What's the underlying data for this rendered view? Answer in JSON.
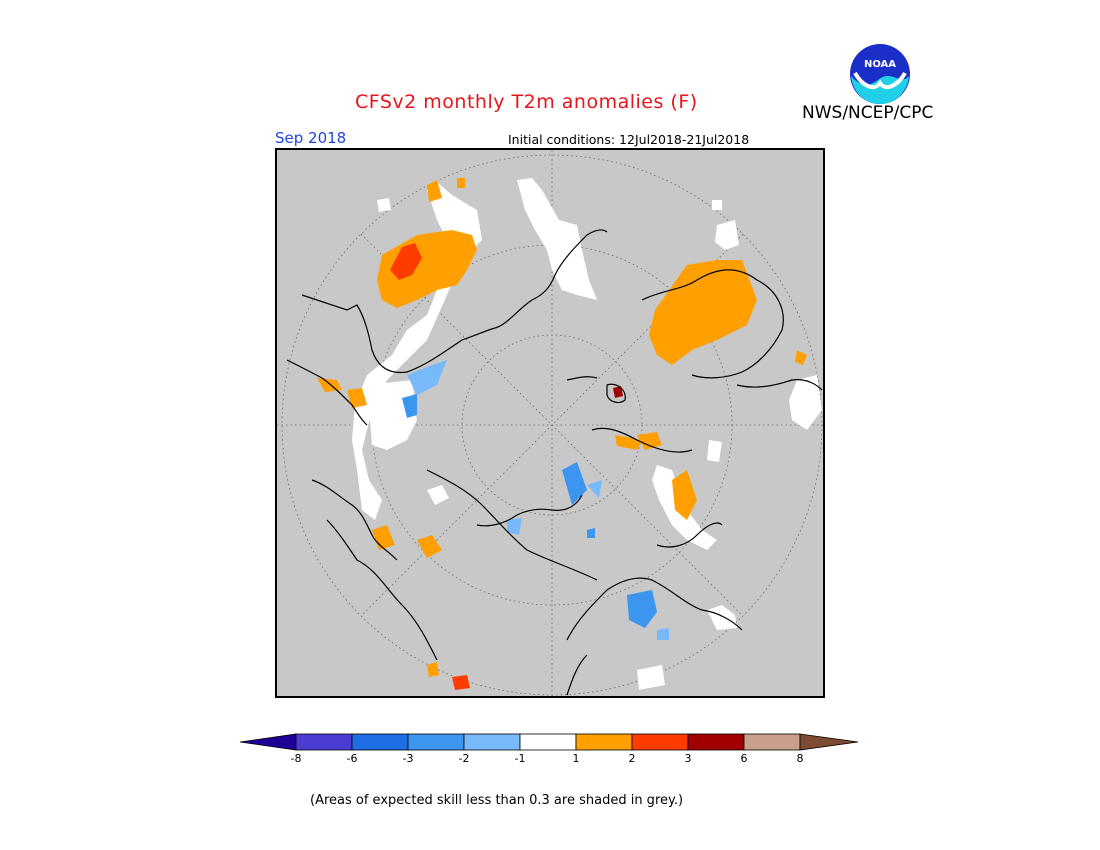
{
  "header": {
    "title": "CFSv2 monthly T2m anomalies (F)",
    "agency": "NWS/NCEP/CPC",
    "logo_text": "NOAA",
    "month": "Sep 2018",
    "initial_conditions": "Initial conditions: 12Jul2018-21Jul2018"
  },
  "map": {
    "projection": "north polar stereographic",
    "background_meaning": "skill < 0.3 (grey)"
  },
  "legend": {
    "ticks": [
      "-8",
      "-6",
      "-3",
      "-2",
      "-1",
      "1",
      "2",
      "3",
      "6",
      "8"
    ],
    "colors": [
      "#1e0096",
      "#4b3cd2",
      "#1e6ee6",
      "#3c96f0",
      "#78b9fa",
      "#ffffff",
      "#ffa000",
      "#ff3c00",
      "#a00000",
      "#c8a08c",
      "#7d4b32"
    ],
    "footnote": "(Areas of expected skill less than 0.3 are shaded in grey.)"
  },
  "colors": {
    "title": "#e8141b",
    "month": "#1f44e0",
    "grey_bg": "#c8c8c8",
    "orange": "#ffa000",
    "red": "#ff3c00",
    "darkred": "#a00000",
    "blue": "#3c96f0",
    "lightblue": "#78b9fa"
  }
}
